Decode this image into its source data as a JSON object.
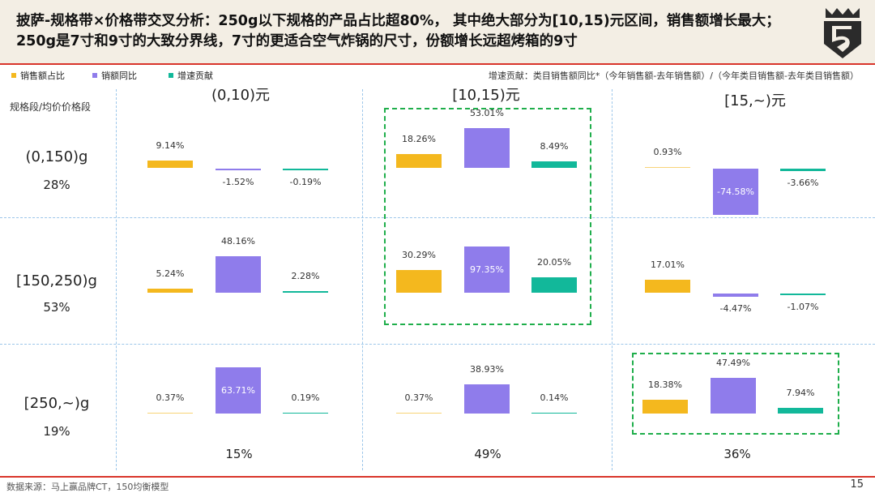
{
  "title": "披萨-规格带×价格带交叉分析：250g以下规格的产品占比超80%， 其中绝大部分为[10,15)元区间，销售额增长最大；250g是7寸和9寸的大致分界线，7寸的更适合空气炸锅的尺寸，份额增长远超烤箱的9寸",
  "legend": [
    {
      "label": "销售额占比",
      "color": "#F4B81E"
    },
    {
      "label": "销额同比",
      "color": "#8F7CEB"
    },
    {
      "label": "增速贡献",
      "color": "#12B89A"
    }
  ],
  "note": "增速贡献：类目销售额同比*（今年销售额-去年销售额）/（今年类目销售额-去年类目销售额）",
  "row_header": "规格段/均价价格段",
  "footer": {
    "source": "数据来源：马上赢品牌CT，150均衡模型",
    "page": "15"
  },
  "chart_data": {
    "type": "bar",
    "columns": [
      {
        "label": "(0,10)元",
        "share": "15%"
      },
      {
        "label": "[10,15)元",
        "share": "49%"
      },
      {
        "label": "[15,~)元",
        "share": "36%"
      }
    ],
    "rows": [
      {
        "label": "(0,150)g",
        "share": "28%"
      },
      {
        "label": "[150,250)g",
        "share": "53%"
      },
      {
        "label": "[250,~)g",
        "share": "19%"
      }
    ],
    "series": [
      "销售额占比",
      "销额同比",
      "增速贡献"
    ],
    "cells": [
      [
        [
          9.14,
          -1.52,
          -0.19
        ],
        [
          18.26,
          53.01,
          8.49
        ],
        [
          0.93,
          -74.58,
          -3.66
        ]
      ],
      [
        [
          5.24,
          48.16,
          2.28
        ],
        [
          30.29,
          97.35,
          20.05
        ],
        [
          17.01,
          -4.47,
          -1.07
        ]
      ],
      [
        [
          0.37,
          63.71,
          0.19
        ],
        [
          0.37,
          38.93,
          0.14
        ],
        [
          18.38,
          47.49,
          7.94
        ]
      ]
    ],
    "highlighted": [
      "[10,15)元 × (0,150)g–[150,250)g",
      "[15,~)元 × [250,~)g"
    ],
    "unit": "%"
  }
}
